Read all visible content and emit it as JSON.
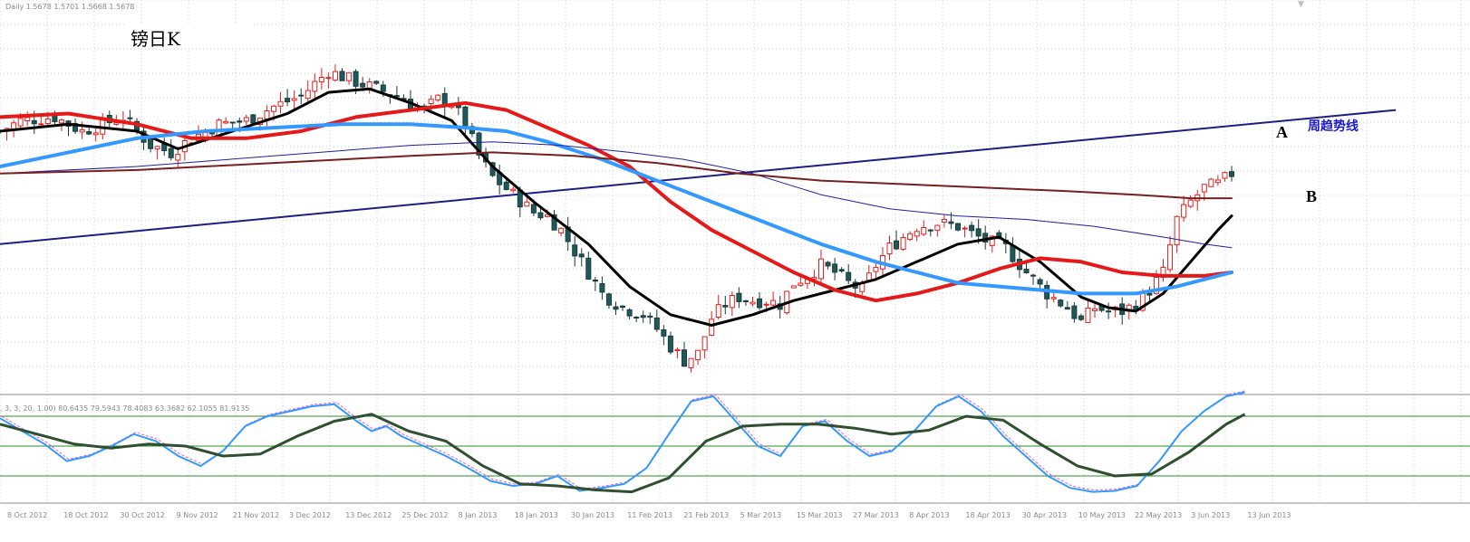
{
  "header": {
    "info_text": "Daily  1.5678 1.5701 1.5668 1.5678",
    "chart_label": "镑日K",
    "indicator_text": ", 3, 3, 20, 1.00) 80.6435 79.5943 78.4083 63.3682 62.1055 81.9135"
  },
  "annotations": {
    "point_a": "A",
    "point_b": "B",
    "trend_line_label": "周趋势线"
  },
  "chart_data": {
    "type": "candlestick",
    "ylim": [
      0,
      100
    ],
    "grid": true,
    "x_tick_labels": [
      "8 Oct 2012",
      "18 Oct 2012",
      "30 Oct 2012",
      "9 Nov 2012",
      "21 Nov 2012",
      "3 Dec 2012",
      "13 Dec 2012",
      "25 Dec 2012",
      "8 Jan 2013",
      "18 Jan 2013",
      "30 Jan 2013",
      "11 Feb 2013",
      "21 Feb 2013",
      "5 Mar 2013",
      "15 Mar 2013",
      "27 Mar 2013",
      "8 Apr 2013",
      "18 Apr 2013",
      "30 Apr 2013",
      "10 May 2013",
      "22 May 2013",
      "3 Jun 2013",
      "13 Jun 2013"
    ],
    "candle_count": 181,
    "close_path": [
      [
        0,
        70
      ],
      [
        3,
        73
      ],
      [
        8,
        74
      ],
      [
        12,
        70
      ],
      [
        18,
        74
      ],
      [
        22,
        66
      ],
      [
        25,
        64
      ],
      [
        28,
        68
      ],
      [
        32,
        72
      ],
      [
        36,
        73
      ],
      [
        40,
        77
      ],
      [
        44,
        80
      ],
      [
        48,
        87
      ],
      [
        52,
        84
      ],
      [
        55,
        82
      ],
      [
        58,
        80
      ],
      [
        60,
        78
      ],
      [
        62,
        76
      ],
      [
        64,
        79
      ],
      [
        66,
        78
      ],
      [
        68,
        72
      ],
      [
        70,
        63
      ],
      [
        72,
        57
      ],
      [
        75,
        52
      ],
      [
        78,
        47
      ],
      [
        80,
        46
      ],
      [
        82,
        42
      ],
      [
        85,
        33
      ],
      [
        88,
        24
      ],
      [
        91,
        20
      ],
      [
        94,
        18
      ],
      [
        96,
        14
      ],
      [
        98,
        9
      ],
      [
        100,
        5
      ],
      [
        102,
        7
      ],
      [
        104,
        17
      ],
      [
        106,
        21
      ],
      [
        108,
        23
      ],
      [
        110,
        22
      ],
      [
        112,
        22
      ],
      [
        114,
        21
      ],
      [
        116,
        27
      ],
      [
        118,
        29
      ],
      [
        120,
        32
      ],
      [
        122,
        30
      ],
      [
        124,
        27
      ],
      [
        126,
        25
      ],
      [
        128,
        32
      ],
      [
        130,
        37
      ],
      [
        134,
        43
      ],
      [
        137,
        44
      ],
      [
        140,
        43
      ],
      [
        144,
        39
      ],
      [
        147,
        37
      ],
      [
        150,
        30
      ],
      [
        153,
        24
      ],
      [
        156,
        20
      ],
      [
        158,
        16
      ],
      [
        160,
        20
      ],
      [
        162,
        19
      ],
      [
        164,
        19
      ],
      [
        166,
        21
      ],
      [
        168,
        25
      ],
      [
        170,
        30
      ],
      [
        172,
        45
      ],
      [
        174,
        50
      ],
      [
        176,
        54
      ],
      [
        178,
        55
      ],
      [
        180,
        58
      ]
    ],
    "moving_averages": [
      {
        "color": "#000000",
        "width": 3,
        "points": [
          [
            0,
            70
          ],
          [
            10,
            72
          ],
          [
            20,
            70
          ],
          [
            26,
            65
          ],
          [
            34,
            70
          ],
          [
            42,
            75
          ],
          [
            48,
            81
          ],
          [
            54,
            82
          ],
          [
            60,
            78
          ],
          [
            66,
            73
          ],
          [
            72,
            60
          ],
          [
            78,
            50
          ],
          [
            86,
            38
          ],
          [
            92,
            26
          ],
          [
            98,
            18
          ],
          [
            104,
            15
          ],
          [
            110,
            18
          ],
          [
            116,
            22
          ],
          [
            122,
            25
          ],
          [
            128,
            28
          ],
          [
            134,
            33
          ],
          [
            140,
            38
          ],
          [
            146,
            40
          ],
          [
            152,
            33
          ],
          [
            158,
            23
          ],
          [
            162,
            20
          ],
          [
            166,
            19
          ],
          [
            170,
            24
          ],
          [
            174,
            33
          ],
          [
            178,
            42
          ],
          [
            180,
            46
          ]
        ]
      },
      {
        "color": "#e61919",
        "width": 4,
        "points": [
          [
            0,
            74
          ],
          [
            10,
            75
          ],
          [
            20,
            72
          ],
          [
            28,
            68
          ],
          [
            36,
            68
          ],
          [
            44,
            70
          ],
          [
            52,
            74
          ],
          [
            60,
            76
          ],
          [
            68,
            78
          ],
          [
            74,
            76
          ],
          [
            80,
            71
          ],
          [
            86,
            66
          ],
          [
            92,
            60
          ],
          [
            98,
            50
          ],
          [
            104,
            42
          ],
          [
            110,
            36
          ],
          [
            116,
            30
          ],
          [
            122,
            25
          ],
          [
            128,
            22
          ],
          [
            134,
            24
          ],
          [
            140,
            27
          ],
          [
            146,
            31
          ],
          [
            152,
            34
          ],
          [
            158,
            33
          ],
          [
            164,
            30
          ],
          [
            170,
            29
          ],
          [
            176,
            29
          ],
          [
            180,
            30
          ]
        ]
      },
      {
        "color": "#3399ff",
        "width": 4,
        "points": [
          [
            0,
            60
          ],
          [
            10,
            64
          ],
          [
            20,
            68
          ],
          [
            30,
            70
          ],
          [
            40,
            71
          ],
          [
            50,
            72
          ],
          [
            60,
            72
          ],
          [
            68,
            71
          ],
          [
            74,
            70
          ],
          [
            80,
            67
          ],
          [
            88,
            62
          ],
          [
            96,
            56
          ],
          [
            104,
            50
          ],
          [
            112,
            44
          ],
          [
            120,
            38
          ],
          [
            128,
            33
          ],
          [
            134,
            30
          ],
          [
            140,
            27
          ],
          [
            146,
            26
          ],
          [
            152,
            25
          ],
          [
            158,
            24
          ],
          [
            166,
            24
          ],
          [
            172,
            26
          ],
          [
            180,
            30
          ]
        ]
      },
      {
        "color": "#1f1fa3",
        "width": 1,
        "points": [
          [
            0,
            58
          ],
          [
            20,
            60
          ],
          [
            40,
            63
          ],
          [
            60,
            66
          ],
          [
            72,
            67
          ],
          [
            82,
            66
          ],
          [
            92,
            64
          ],
          [
            100,
            62
          ],
          [
            110,
            58
          ],
          [
            120,
            52
          ],
          [
            130,
            48
          ],
          [
            140,
            46
          ],
          [
            150,
            45
          ],
          [
            160,
            43
          ],
          [
            170,
            40
          ],
          [
            176,
            38
          ],
          [
            180,
            37
          ]
        ]
      },
      {
        "color": "#7a1f1f",
        "width": 2,
        "points": [
          [
            0,
            58
          ],
          [
            20,
            59
          ],
          [
            40,
            61
          ],
          [
            60,
            63
          ],
          [
            72,
            64
          ],
          [
            84,
            63
          ],
          [
            96,
            61
          ],
          [
            108,
            58
          ],
          [
            120,
            56
          ],
          [
            132,
            55
          ],
          [
            144,
            54
          ],
          [
            156,
            53
          ],
          [
            166,
            52
          ],
          [
            174,
            51
          ],
          [
            180,
            51
          ]
        ]
      }
    ],
    "weekly_trend_line": [
      [
        0,
        38
      ],
      [
        204,
        76
      ]
    ],
    "oscillator": {
      "levels": [
        20,
        50,
        80
      ],
      "main_line": [
        [
          0,
          78
        ],
        [
          6,
          65
        ],
        [
          12,
          52
        ],
        [
          18,
          35
        ],
        [
          24,
          40
        ],
        [
          30,
          50
        ],
        [
          36,
          62
        ],
        [
          42,
          55
        ],
        [
          48,
          40
        ],
        [
          54,
          30
        ],
        [
          60,
          45
        ],
        [
          66,
          70
        ],
        [
          72,
          80
        ],
        [
          78,
          85
        ],
        [
          84,
          90
        ],
        [
          90,
          92
        ],
        [
          96,
          75
        ],
        [
          100,
          65
        ],
        [
          104,
          70
        ],
        [
          108,
          60
        ],
        [
          114,
          50
        ],
        [
          120,
          40
        ],
        [
          126,
          28
        ],
        [
          132,
          15
        ],
        [
          138,
          10
        ],
        [
          144,
          12
        ],
        [
          150,
          20
        ],
        [
          156,
          5
        ],
        [
          162,
          8
        ],
        [
          168,
          12
        ],
        [
          174,
          28
        ],
        [
          180,
          62
        ],
        [
          186,
          95
        ],
        [
          192,
          100
        ],
        [
          198,
          75
        ],
        [
          204,
          50
        ],
        [
          210,
          40
        ],
        [
          216,
          70
        ],
        [
          222,
          75
        ],
        [
          228,
          55
        ],
        [
          234,
          40
        ],
        [
          240,
          45
        ],
        [
          246,
          65
        ],
        [
          252,
          90
        ],
        [
          258,
          100
        ],
        [
          264,
          85
        ],
        [
          270,
          60
        ],
        [
          276,
          40
        ],
        [
          282,
          20
        ],
        [
          288,
          8
        ],
        [
          294,
          4
        ],
        [
          300,
          5
        ],
        [
          306,
          10
        ],
        [
          312,
          35
        ],
        [
          318,
          65
        ],
        [
          324,
          85
        ],
        [
          330,
          100
        ],
        [
          335,
          104
        ]
      ],
      "signal_line": [
        [
          0,
          72
        ],
        [
          10,
          62
        ],
        [
          20,
          52
        ],
        [
          30,
          48
        ],
        [
          40,
          52
        ],
        [
          50,
          50
        ],
        [
          60,
          40
        ],
        [
          70,
          42
        ],
        [
          80,
          60
        ],
        [
          90,
          75
        ],
        [
          100,
          82
        ],
        [
          110,
          65
        ],
        [
          120,
          55
        ],
        [
          130,
          30
        ],
        [
          140,
          12
        ],
        [
          150,
          10
        ],
        [
          160,
          6
        ],
        [
          170,
          4
        ],
        [
          180,
          18
        ],
        [
          190,
          55
        ],
        [
          200,
          70
        ],
        [
          210,
          72
        ],
        [
          220,
          72
        ],
        [
          230,
          68
        ],
        [
          240,
          62
        ],
        [
          250,
          66
        ],
        [
          260,
          80
        ],
        [
          270,
          76
        ],
        [
          280,
          52
        ],
        [
          290,
          30
        ],
        [
          300,
          20
        ],
        [
          310,
          22
        ],
        [
          320,
          44
        ],
        [
          330,
          72
        ],
        [
          335,
          82
        ]
      ]
    }
  }
}
